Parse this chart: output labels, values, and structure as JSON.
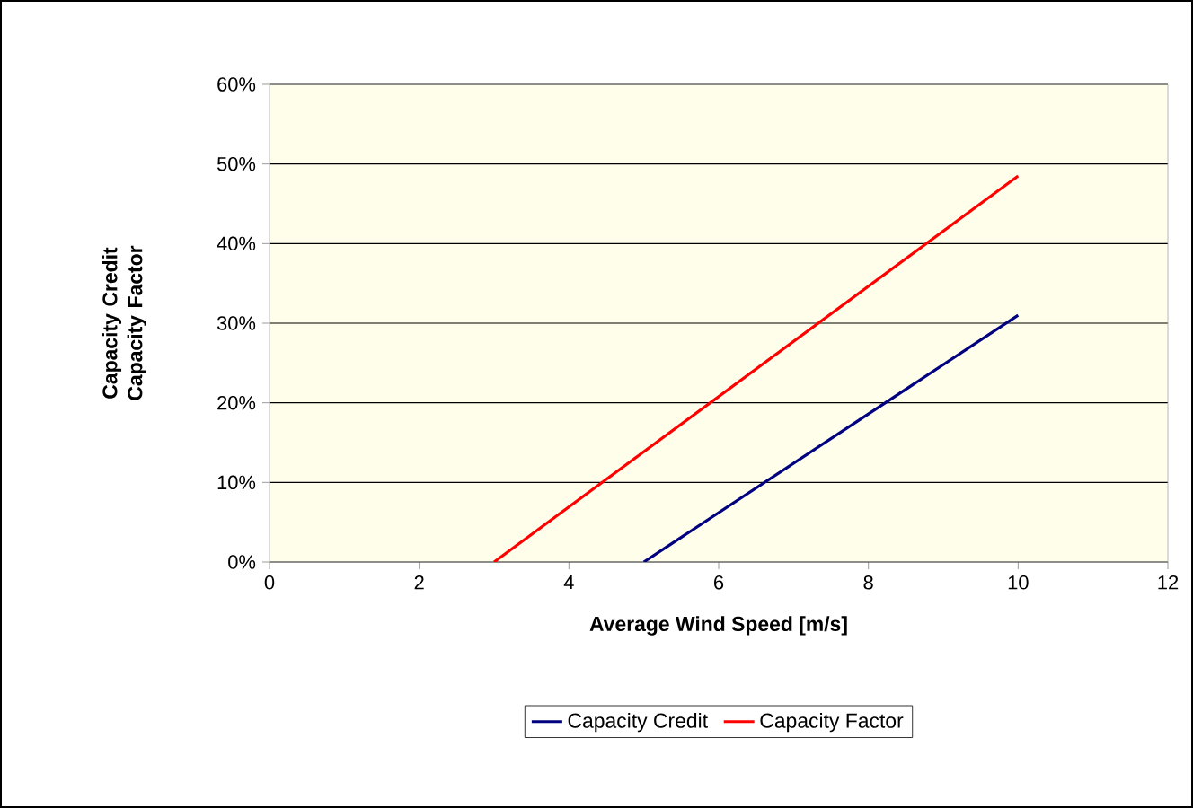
{
  "chart_data": {
    "type": "line",
    "xlabel": "Average Wind Speed [m/s]",
    "ylabel": "Capacity Credit Capacity Factor",
    "series": [
      {
        "name": "Capacity Credit",
        "color": "#000080",
        "x": [
          5,
          10
        ],
        "values": [
          0,
          31
        ]
      },
      {
        "name": "Capacity Factor",
        "color": "#ff0000",
        "x": [
          3,
          10
        ],
        "values": [
          0,
          48.5
        ]
      }
    ],
    "xlim": [
      0,
      12
    ],
    "xticks": [
      0,
      2,
      4,
      6,
      8,
      10,
      12
    ],
    "ylim": [
      0,
      60
    ],
    "yticks": [
      {
        "value": 0,
        "label": "0%"
      },
      {
        "value": 10,
        "label": "10%"
      },
      {
        "value": 20,
        "label": "20%"
      },
      {
        "value": 30,
        "label": "30%"
      },
      {
        "value": 40,
        "label": "40%"
      },
      {
        "value": 50,
        "label": "50%"
      },
      {
        "value": 60,
        "label": "60%"
      }
    ],
    "grid": "y",
    "legend": "bottom",
    "marker": "none",
    "line_style": "solid"
  }
}
